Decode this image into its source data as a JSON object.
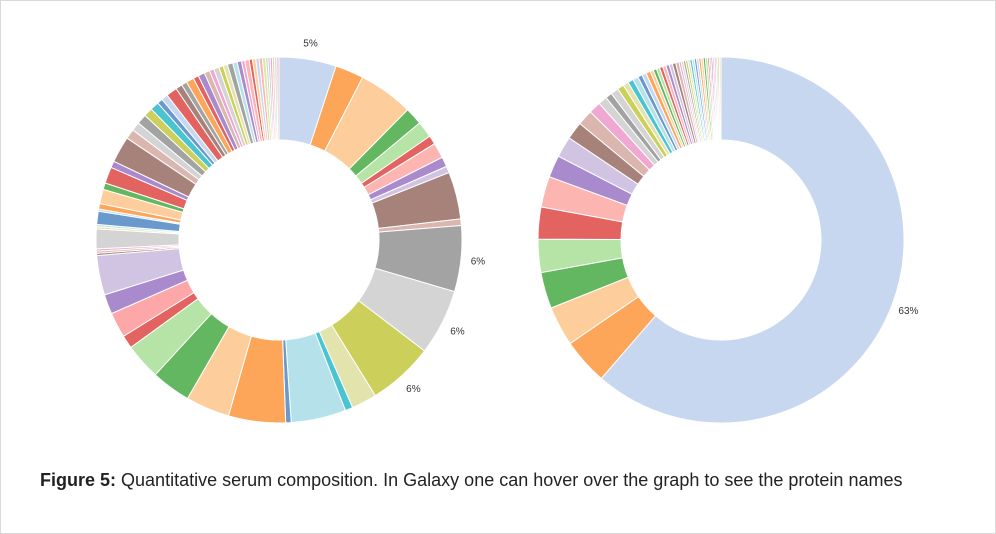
{
  "caption": {
    "label": "Figure 5:",
    "text": "Quantitative serum composition. In Galaxy one can hover over the graph to see the protein names"
  },
  "chart_data": [
    {
      "type": "pie",
      "donut": true,
      "title": "",
      "labels_shown": [
        {
          "text": "5%",
          "slice": 0
        },
        {
          "text": "6%",
          "slice": 11
        },
        {
          "text": "6%",
          "slice": 12
        },
        {
          "text": "6%",
          "slice": 13
        }
      ],
      "values": [
        5.2,
        2.6,
        5.0,
        1.6,
        1.5,
        0.8,
        1.4,
        0.9,
        0.6,
        4.3,
        0.6,
        6.0,
        6.0,
        6.0,
        2.3,
        0.7,
        5.0,
        0.5,
        5.2,
        4.0,
        3.6,
        3.3,
        1.2,
        2.3,
        1.8,
        3.6,
        0.2,
        0.2,
        0.2,
        1.8,
        0.2,
        0.2,
        1.2,
        0.2,
        0.5,
        1.3,
        0.6,
        1.5,
        0.6,
        2.4,
        0.9,
        0.8,
        0.9,
        0.8,
        0.8,
        0.5,
        0.6,
        1.0,
        0.6,
        0.5,
        0.7,
        0.5,
        0.6,
        0.5,
        0.4,
        0.5,
        0.4,
        0.4,
        0.5,
        0.4,
        0.4,
        0.3,
        0.4,
        0.3,
        0.3,
        0.3,
        0.3,
        0.3,
        0.2,
        0.2,
        0.2,
        0.2,
        0.2,
        0.2
      ],
      "colors": [
        "#c6d7ef",
        "#fda65a",
        "#fdcd9b",
        "#63b760",
        "#b5e4a6",
        "#e36361",
        "#fdb5b2",
        "#a98bcd",
        "#d1c4e3",
        "#a7827b",
        "#dab6af",
        "#a3a3a3",
        "#d4d4d4",
        "#ccd05b",
        "#e3e3ae",
        "#4ac4d1",
        "#b5e2ea",
        "#6a9acd",
        "#fda65a",
        "#fdcd9b",
        "#63b760",
        "#b5e4a6",
        "#e36361",
        "#fda7a8",
        "#a98bcd",
        "#d1c4e3",
        "#a7827b",
        "#dab6af",
        "#f0a7d2",
        "#d4d4d4",
        "#e3e3ae",
        "#b5e2ea",
        "#6a9acd",
        "#c6d7ef",
        "#fda65a",
        "#fdcd9b",
        "#63b760",
        "#e36361",
        "#a98bcd",
        "#a7827b",
        "#dab6af",
        "#d4d4d4",
        "#a3a3a3",
        "#ccd05b",
        "#4ac4d1",
        "#6a9acd",
        "#c6d7ef",
        "#e36361",
        "#a7827b",
        "#a3a3a3",
        "#fda65a",
        "#e36361",
        "#a98bcd",
        "#dab6af",
        "#f0a7d2",
        "#d4d4d4",
        "#ccd05b",
        "#e3e3ae",
        "#a3a3a3",
        "#b5e2ea",
        "#a98bcd",
        "#f0a7d2",
        "#fdb5b2",
        "#e36361",
        "#fdcd9b",
        "#c6d7ef",
        "#fdb5b2",
        "#e3e3ae",
        "#b5e4a6",
        "#d1c4e3",
        "#f0a7d2",
        "#fdcd9b",
        "#b5e2ea",
        "#fdb5b2"
      ]
    },
    {
      "type": "pie",
      "donut": true,
      "title": "",
      "labels_shown": [
        {
          "text": "63%",
          "slice": 0
        }
      ],
      "values": [
        63,
        4.2,
        3.6,
        3.3,
        3.0,
        2.9,
        2.8,
        2.0,
        1.9,
        1.6,
        1.4,
        1.1,
        0.8,
        0.6,
        0.7,
        0.6,
        0.5,
        0.5,
        0.5,
        0.4,
        0.4,
        0.4,
        0.3,
        0.3,
        0.3,
        0.3,
        0.3,
        0.3,
        0.3,
        0.3,
        0.3,
        0.2,
        0.2,
        0.2,
        0.2,
        0.2,
        0.2,
        0.2,
        0.2,
        0.2,
        0.2,
        0.2,
        0.2,
        0.2,
        0.15,
        0.15,
        0.15,
        0.15,
        0.15,
        0.15,
        0.15,
        0.15
      ],
      "colors": [
        "#c6d7ef",
        "#fda65a",
        "#fdcd9b",
        "#63b760",
        "#b5e4a6",
        "#e36361",
        "#fdb5b2",
        "#a98bcd",
        "#d1c4e3",
        "#a7827b",
        "#dab6af",
        "#f0a7d2",
        "#d4d4d4",
        "#a3a3a3",
        "#d4d4d4",
        "#ccd05b",
        "#e3e3ae",
        "#4ac4d1",
        "#b5e2ea",
        "#6a9acd",
        "#c6d7ef",
        "#fda65a",
        "#fdcd9b",
        "#63b760",
        "#b5e4a6",
        "#e36361",
        "#fdb5b2",
        "#a98bcd",
        "#d1c4e3",
        "#a7827b",
        "#dab6af",
        "#f0a7d2",
        "#d4d4d4",
        "#a3a3a3",
        "#ccd05b",
        "#e3e3ae",
        "#4ac4d1",
        "#b5e2ea",
        "#6a9acd",
        "#c6d7ef",
        "#fda65a",
        "#fdcd9b",
        "#63b760",
        "#b5e4a6",
        "#e36361",
        "#fdb5b2",
        "#a98bcd",
        "#d1c4e3",
        "#f0a7d2",
        "#d4d4d4",
        "#ccd05b",
        "#e3e3ae"
      ]
    }
  ]
}
